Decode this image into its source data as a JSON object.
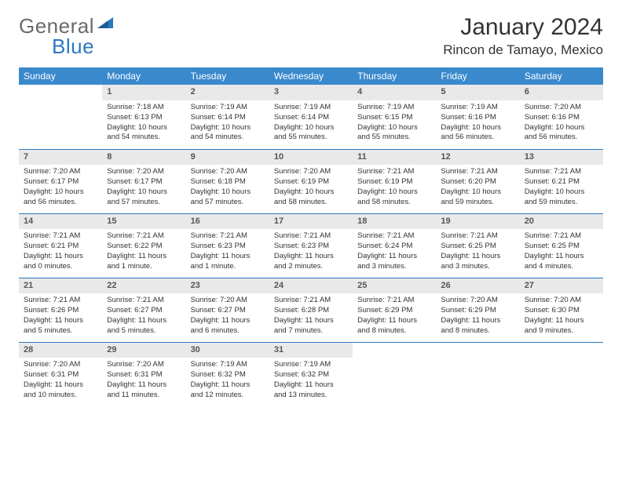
{
  "logo": {
    "general": "General",
    "blue": "Blue"
  },
  "title": "January 2024",
  "location": "Rincon de Tamayo, Mexico",
  "dayHeaders": [
    "Sunday",
    "Monday",
    "Tuesday",
    "Wednesday",
    "Thursday",
    "Friday",
    "Saturday"
  ],
  "colors": {
    "headerBg": "#3a89cd",
    "accent": "#2b78c2",
    "dayNumBg": "#e9e9e9",
    "logoGray": "#6a6a6a"
  },
  "weeks": [
    [
      null,
      {
        "n": "1",
        "sr": "Sunrise: 7:18 AM",
        "ss": "Sunset: 6:13 PM",
        "d1": "Daylight: 10 hours",
        "d2": "and 54 minutes."
      },
      {
        "n": "2",
        "sr": "Sunrise: 7:19 AM",
        "ss": "Sunset: 6:14 PM",
        "d1": "Daylight: 10 hours",
        "d2": "and 54 minutes."
      },
      {
        "n": "3",
        "sr": "Sunrise: 7:19 AM",
        "ss": "Sunset: 6:14 PM",
        "d1": "Daylight: 10 hours",
        "d2": "and 55 minutes."
      },
      {
        "n": "4",
        "sr": "Sunrise: 7:19 AM",
        "ss": "Sunset: 6:15 PM",
        "d1": "Daylight: 10 hours",
        "d2": "and 55 minutes."
      },
      {
        "n": "5",
        "sr": "Sunrise: 7:19 AM",
        "ss": "Sunset: 6:16 PM",
        "d1": "Daylight: 10 hours",
        "d2": "and 56 minutes."
      },
      {
        "n": "6",
        "sr": "Sunrise: 7:20 AM",
        "ss": "Sunset: 6:16 PM",
        "d1": "Daylight: 10 hours",
        "d2": "and 56 minutes."
      }
    ],
    [
      {
        "n": "7",
        "sr": "Sunrise: 7:20 AM",
        "ss": "Sunset: 6:17 PM",
        "d1": "Daylight: 10 hours",
        "d2": "and 56 minutes."
      },
      {
        "n": "8",
        "sr": "Sunrise: 7:20 AM",
        "ss": "Sunset: 6:17 PM",
        "d1": "Daylight: 10 hours",
        "d2": "and 57 minutes."
      },
      {
        "n": "9",
        "sr": "Sunrise: 7:20 AM",
        "ss": "Sunset: 6:18 PM",
        "d1": "Daylight: 10 hours",
        "d2": "and 57 minutes."
      },
      {
        "n": "10",
        "sr": "Sunrise: 7:20 AM",
        "ss": "Sunset: 6:19 PM",
        "d1": "Daylight: 10 hours",
        "d2": "and 58 minutes."
      },
      {
        "n": "11",
        "sr": "Sunrise: 7:21 AM",
        "ss": "Sunset: 6:19 PM",
        "d1": "Daylight: 10 hours",
        "d2": "and 58 minutes."
      },
      {
        "n": "12",
        "sr": "Sunrise: 7:21 AM",
        "ss": "Sunset: 6:20 PM",
        "d1": "Daylight: 10 hours",
        "d2": "and 59 minutes."
      },
      {
        "n": "13",
        "sr": "Sunrise: 7:21 AM",
        "ss": "Sunset: 6:21 PM",
        "d1": "Daylight: 10 hours",
        "d2": "and 59 minutes."
      }
    ],
    [
      {
        "n": "14",
        "sr": "Sunrise: 7:21 AM",
        "ss": "Sunset: 6:21 PM",
        "d1": "Daylight: 11 hours",
        "d2": "and 0 minutes."
      },
      {
        "n": "15",
        "sr": "Sunrise: 7:21 AM",
        "ss": "Sunset: 6:22 PM",
        "d1": "Daylight: 11 hours",
        "d2": "and 1 minute."
      },
      {
        "n": "16",
        "sr": "Sunrise: 7:21 AM",
        "ss": "Sunset: 6:23 PM",
        "d1": "Daylight: 11 hours",
        "d2": "and 1 minute."
      },
      {
        "n": "17",
        "sr": "Sunrise: 7:21 AM",
        "ss": "Sunset: 6:23 PM",
        "d1": "Daylight: 11 hours",
        "d2": "and 2 minutes."
      },
      {
        "n": "18",
        "sr": "Sunrise: 7:21 AM",
        "ss": "Sunset: 6:24 PM",
        "d1": "Daylight: 11 hours",
        "d2": "and 3 minutes."
      },
      {
        "n": "19",
        "sr": "Sunrise: 7:21 AM",
        "ss": "Sunset: 6:25 PM",
        "d1": "Daylight: 11 hours",
        "d2": "and 3 minutes."
      },
      {
        "n": "20",
        "sr": "Sunrise: 7:21 AM",
        "ss": "Sunset: 6:25 PM",
        "d1": "Daylight: 11 hours",
        "d2": "and 4 minutes."
      }
    ],
    [
      {
        "n": "21",
        "sr": "Sunrise: 7:21 AM",
        "ss": "Sunset: 6:26 PM",
        "d1": "Daylight: 11 hours",
        "d2": "and 5 minutes."
      },
      {
        "n": "22",
        "sr": "Sunrise: 7:21 AM",
        "ss": "Sunset: 6:27 PM",
        "d1": "Daylight: 11 hours",
        "d2": "and 5 minutes."
      },
      {
        "n": "23",
        "sr": "Sunrise: 7:20 AM",
        "ss": "Sunset: 6:27 PM",
        "d1": "Daylight: 11 hours",
        "d2": "and 6 minutes."
      },
      {
        "n": "24",
        "sr": "Sunrise: 7:21 AM",
        "ss": "Sunset: 6:28 PM",
        "d1": "Daylight: 11 hours",
        "d2": "and 7 minutes."
      },
      {
        "n": "25",
        "sr": "Sunrise: 7:21 AM",
        "ss": "Sunset: 6:29 PM",
        "d1": "Daylight: 11 hours",
        "d2": "and 8 minutes."
      },
      {
        "n": "26",
        "sr": "Sunrise: 7:20 AM",
        "ss": "Sunset: 6:29 PM",
        "d1": "Daylight: 11 hours",
        "d2": "and 8 minutes."
      },
      {
        "n": "27",
        "sr": "Sunrise: 7:20 AM",
        "ss": "Sunset: 6:30 PM",
        "d1": "Daylight: 11 hours",
        "d2": "and 9 minutes."
      }
    ],
    [
      {
        "n": "28",
        "sr": "Sunrise: 7:20 AM",
        "ss": "Sunset: 6:31 PM",
        "d1": "Daylight: 11 hours",
        "d2": "and 10 minutes."
      },
      {
        "n": "29",
        "sr": "Sunrise: 7:20 AM",
        "ss": "Sunset: 6:31 PM",
        "d1": "Daylight: 11 hours",
        "d2": "and 11 minutes."
      },
      {
        "n": "30",
        "sr": "Sunrise: 7:19 AM",
        "ss": "Sunset: 6:32 PM",
        "d1": "Daylight: 11 hours",
        "d2": "and 12 minutes."
      },
      {
        "n": "31",
        "sr": "Sunrise: 7:19 AM",
        "ss": "Sunset: 6:32 PM",
        "d1": "Daylight: 11 hours",
        "d2": "and 13 minutes."
      },
      null,
      null,
      null
    ]
  ]
}
